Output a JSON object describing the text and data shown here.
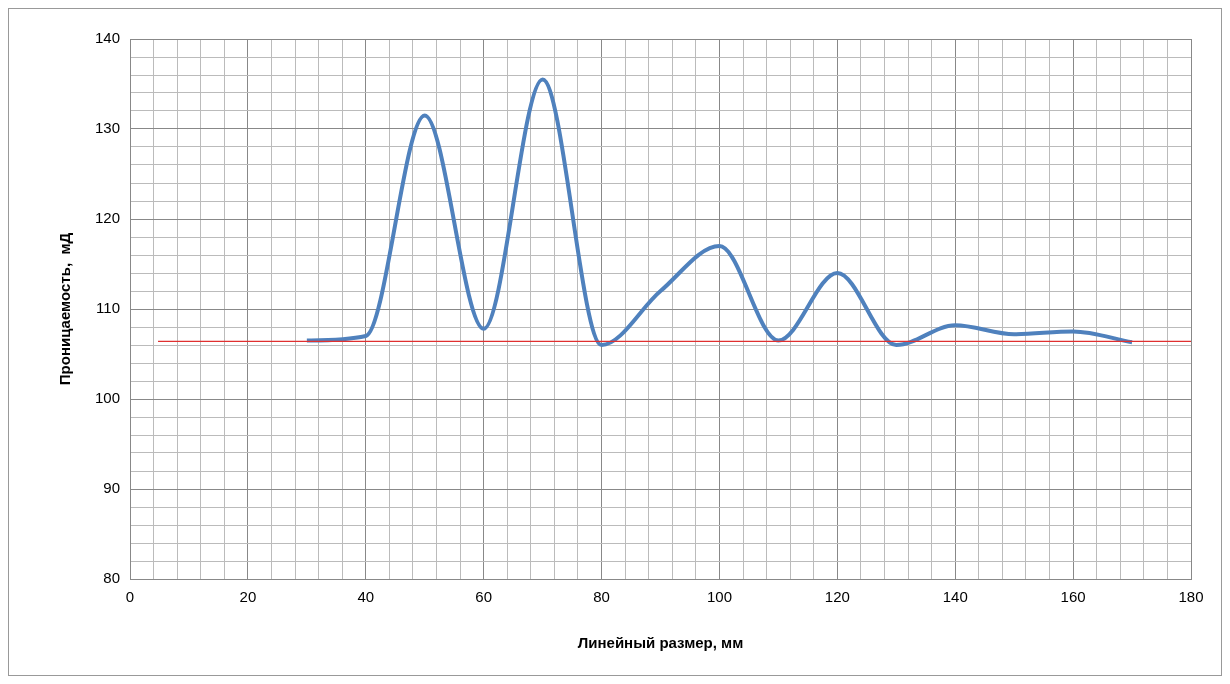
{
  "chart_data": {
    "type": "line",
    "xlabel": "Линейный размер, мм",
    "ylabel": "Проницаемость,  мД",
    "x": [
      30,
      40,
      50,
      60,
      70,
      80,
      90,
      100,
      110,
      120,
      130,
      140,
      150,
      160,
      170
    ],
    "series": [
      {
        "color": "#4f81bd",
        "values": [
          106.5,
          107,
          131.5,
          107.8,
          135.5,
          106,
          112,
          117,
          106.5,
          114,
          106,
          108.2,
          107.2,
          107.5,
          106.3
        ]
      }
    ],
    "xlim": [
      0,
      180
    ],
    "xticks": [
      0,
      {
        "value": 4,
        "label": null
      },
      {
        "value": 8,
        "label": null
      },
      {
        "value": 12,
        "label": null
      },
      {
        "value": 16,
        "label": null
      },
      20,
      {
        "value": 24,
        "label": null
      },
      {
        "value": 28,
        "label": null
      },
      {
        "value": 32,
        "label": null
      },
      {
        "value": 36,
        "label": null
      },
      40,
      {
        "value": 44,
        "label": null
      },
      {
        "value": 48,
        "label": null
      },
      {
        "value": 52,
        "label": null
      },
      {
        "value": 56,
        "label": null
      },
      60,
      {
        "value": 64,
        "label": null
      },
      {
        "value": 68,
        "label": null
      },
      {
        "value": 72,
        "label": null
      },
      {
        "value": 76,
        "label": null
      },
      80,
      {
        "value": 84,
        "label": null
      },
      {
        "value": 88,
        "label": null
      },
      {
        "value": 92,
        "label": null
      },
      {
        "value": 96,
        "label": null
      },
      100,
      {
        "value": 104,
        "label": null
      },
      {
        "value": 108,
        "label": null
      },
      {
        "value": 112,
        "label": null
      },
      {
        "value": 116,
        "label": null
      },
      120,
      {
        "value": 124,
        "label": null
      },
      {
        "value": 128,
        "label": null
      },
      {
        "value": 132,
        "label": null
      },
      {
        "value": 136,
        "label": null
      },
      140,
      {
        "value": 144,
        "label": null
      },
      {
        "value": 148,
        "label": null
      },
      {
        "value": 152,
        "label": null
      },
      {
        "value": 156,
        "label": null
      },
      160,
      {
        "value": 164,
        "label": null
      },
      {
        "value": 168,
        "label": null
      },
      {
        "value": 172,
        "label": null
      },
      {
        "value": 176,
        "label": null
      },
      180
    ],
    "ylim": [
      80,
      140
    ],
    "yticks": [
      80,
      {
        "value": 82,
        "label": null
      },
      {
        "value": 84,
        "label": null
      },
      {
        "value": 86,
        "label": null
      },
      {
        "value": 88,
        "label": null
      },
      90,
      {
        "value": 92,
        "label": null
      },
      {
        "value": 94,
        "label": null
      },
      {
        "value": 96,
        "label": null
      },
      {
        "value": 98,
        "label": null
      },
      100,
      {
        "value": 102,
        "label": null
      },
      {
        "value": 104,
        "label": null
      },
      {
        "value": 106,
        "label": null
      },
      {
        "value": 108,
        "label": null
      },
      110,
      {
        "value": 112,
        "label": null
      },
      {
        "value": 114,
        "label": null
      },
      {
        "value": 116,
        "label": null
      },
      {
        "value": 118,
        "label": null
      },
      120,
      {
        "value": 122,
        "label": null
      },
      {
        "value": 124,
        "label": null
      },
      {
        "value": 126,
        "label": null
      },
      {
        "value": 128,
        "label": null
      },
      130,
      {
        "value": 132,
        "label": null
      },
      {
        "value": 134,
        "label": null
      },
      {
        "value": 136,
        "label": null
      },
      {
        "value": 138,
        "label": null
      },
      140
    ],
    "ref_lines": [
      {
        "axis": "y",
        "value": 106.4,
        "color": "#e03030"
      }
    ],
    "grid": true,
    "legend": false,
    "marker": "none",
    "line_style": "solid"
  }
}
